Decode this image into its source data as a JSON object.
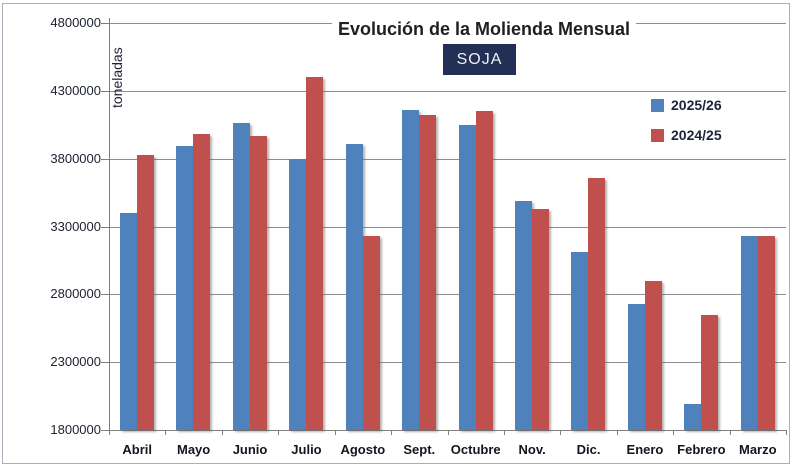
{
  "chart_data": {
    "type": "bar",
    "title": "Evolución de la Molienda Mensual",
    "subtitle_badge": "SOJA",
    "ylabel": "toneladas",
    "xlabel": "",
    "categories": [
      "Abril",
      "Mayo",
      "Junio",
      "Julio",
      "Agosto",
      "Sept.",
      "Octubre",
      "Nov.",
      "Dic.",
      "Enero",
      "Febrero",
      "Marzo"
    ],
    "series": [
      {
        "name": "2025/26",
        "color": "#4f81bd",
        "values": [
          3400000,
          3890000,
          4060000,
          3800000,
          3910000,
          4160000,
          4050000,
          3490000,
          3110000,
          2730000,
          1990000,
          3230000
        ]
      },
      {
        "name": "2024/25",
        "color": "#c0504d",
        "values": [
          3830000,
          3980000,
          3970000,
          4400000,
          3230000,
          4120000,
          4150000,
          3430000,
          3660000,
          2900000,
          2650000,
          3230000
        ]
      }
    ],
    "ylim": [
      1800000,
      4800000
    ],
    "ytick_step": 500000,
    "ytick_labels": [
      "4800000",
      "4300000",
      "3800000",
      "3300000",
      "2800000",
      "2300000",
      "1800000"
    ],
    "grid": "horizontal",
    "legend_position": "top-right",
    "badge_bg": "#232f55",
    "badge_text_color": "#eef0f5"
  },
  "palette": {
    "background": "#ffffff",
    "frame_border": "#a9b0ba",
    "grid_color": "#8e8e8e",
    "axis_color": "#7f7f7f",
    "tick_text": "#1c2230",
    "category_text": "#11161f",
    "legend_text": "#1c2437",
    "title_text": "#1f1f1f"
  }
}
